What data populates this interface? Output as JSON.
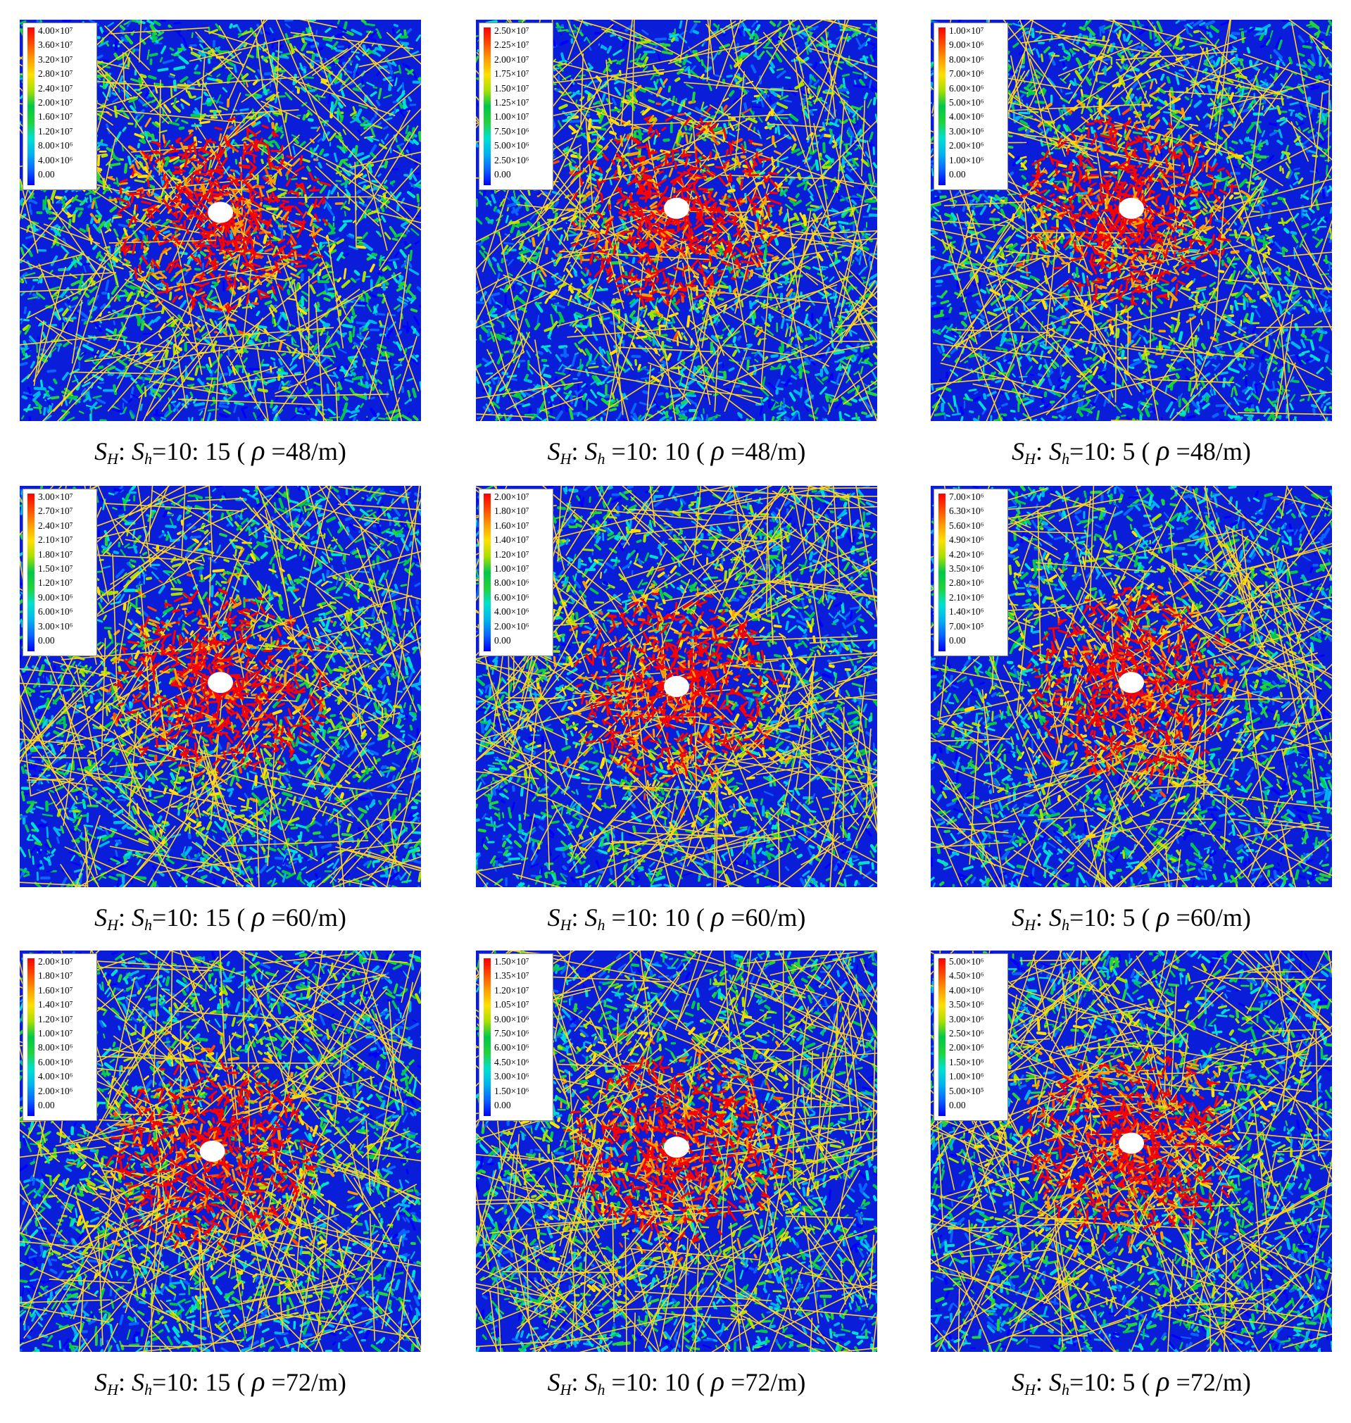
{
  "colors": {
    "scale": [
      "#0000ff",
      "#0a64ff",
      "#00b4f0",
      "#00e0d0",
      "#22d33a",
      "#00c84a",
      "#a8e000",
      "#ffe000",
      "#ff9c00",
      "#ff4a00",
      "#ff0000"
    ],
    "background_field": "#0a1dd8",
    "fracture_lines": "#ffd21e"
  },
  "panels": [
    {
      "legend": [
        "4.00×10⁷",
        "3.60×10⁷",
        "3.20×10⁷",
        "2.80×10⁷",
        "2.40×10⁷",
        "2.00×10⁷",
        "1.60×10⁷",
        "1.20×10⁷",
        "8.00×10⁶",
        "4.00×10⁶",
        "0.00"
      ],
      "caption": {
        "sh_label": "S",
        "sh_sub": "H",
        "sl_label": "S",
        "sl_sub": "h",
        "ratio": "=10: 15 (",
        "rho": "ρ",
        "density": "=48/m)"
      }
    },
    {
      "legend": [
        "2.50×10⁷",
        "2.25×10⁷",
        "2.00×10⁷",
        "1.75×10⁷",
        "1.50×10⁷",
        "1.25×10⁷",
        "1.00×10⁷",
        "7.50×10⁶",
        "5.00×10⁶",
        "2.50×10⁶",
        "0.00"
      ],
      "caption": {
        "sh_label": "S",
        "sh_sub": "H",
        "sl_label": "S",
        "sl_sub": "h",
        "ratio": " =10: 10 (",
        "rho": "ρ",
        "density": "=48/m)"
      }
    },
    {
      "legend": [
        "1.00×10⁷",
        "9.00×10⁶",
        "8.00×10⁶",
        "7.00×10⁶",
        "6.00×10⁶",
        "5.00×10⁶",
        "4.00×10⁶",
        "3.00×10⁶",
        "2.00×10⁶",
        "1.00×10⁶",
        "0.00"
      ],
      "caption": {
        "sh_label": "S",
        "sh_sub": "H",
        "sl_label": "S",
        "sl_sub": "h",
        "ratio": "=10: 5 (",
        "rho": "ρ",
        "density": "=48/m)"
      }
    },
    {
      "legend": [
        "3.00×10⁷",
        "2.70×10⁷",
        "2.40×10⁷",
        "2.10×10⁷",
        "1.80×10⁷",
        "1.50×10⁷",
        "1.20×10⁷",
        "9.00×10⁶",
        "6.00×10⁶",
        "3.00×10⁶",
        "0.00"
      ],
      "caption": {
        "sh_label": "S",
        "sh_sub": "H",
        "sl_label": "S",
        "sl_sub": "h",
        "ratio": "=10: 15 (",
        "rho": "ρ",
        "density": "=60/m)"
      }
    },
    {
      "legend": [
        "2.00×10⁷",
        "1.80×10⁷",
        "1.60×10⁷",
        "1.40×10⁷",
        "1.20×10⁷",
        "1.00×10⁷",
        "8.00×10⁶",
        "6.00×10⁶",
        "4.00×10⁶",
        "2.00×10⁶",
        "0.00"
      ],
      "caption": {
        "sh_label": "S",
        "sh_sub": "H",
        "sl_label": "S",
        "sl_sub": "h",
        "ratio": " =10: 10 (",
        "rho": "ρ",
        "density": "=60/m)"
      }
    },
    {
      "legend": [
        "7.00×10⁶",
        "6.30×10⁶",
        "5.60×10⁶",
        "4.90×10⁶",
        "4.20×10⁶",
        "3.50×10⁶",
        "2.80×10⁶",
        "2.10×10⁶",
        "1.40×10⁶",
        "7.00×10⁵",
        "0.00"
      ],
      "caption": {
        "sh_label": "S",
        "sh_sub": "H",
        "sl_label": "S",
        "sl_sub": "h",
        "ratio": "=10: 5 (",
        "rho": "ρ",
        "density": "=60/m)"
      }
    },
    {
      "legend": [
        "2.00×10⁷",
        "1.80×10⁷",
        "1.60×10⁷",
        "1.40×10⁷",
        "1.20×10⁷",
        "1.00×10⁷",
        "8.00×10⁶",
        "6.00×10⁶",
        "4.00×10⁶",
        "2.00×10⁶",
        "0.00"
      ],
      "caption": {
        "sh_label": "S",
        "sh_sub": "H",
        "sl_label": "S",
        "sl_sub": "h",
        "ratio": "=10: 15 (",
        "rho": "ρ",
        "density": "=72/m)"
      }
    },
    {
      "legend": [
        "1.50×10⁷",
        "1.35×10⁷",
        "1.20×10⁷",
        "1.05×10⁷",
        "9.00×10⁶",
        "7.50×10⁶",
        "6.00×10⁶",
        "4.50×10⁶",
        "3.00×10⁶",
        "1.50×10⁶",
        "0.00"
      ],
      "caption": {
        "sh_label": "S",
        "sh_sub": "H",
        "sl_label": "S",
        "sl_sub": "h",
        "ratio": " =10: 10 (",
        "rho": "ρ",
        "density": "=72/m)"
      }
    },
    {
      "legend": [
        "5.00×10⁶",
        "4.50×10⁶",
        "4.00×10⁶",
        "3.50×10⁶",
        "3.00×10⁶",
        "2.50×10⁶",
        "2.00×10⁶",
        "1.50×10⁶",
        "1.00×10⁶",
        "5.00×10⁵",
        "0.00"
      ],
      "caption": {
        "sh_label": "S",
        "sh_sub": "H",
        "sl_label": "S",
        "sl_sub": "h",
        "ratio": "=10: 5 (",
        "rho": "ρ",
        "density": "=72/m)"
      }
    }
  ]
}
